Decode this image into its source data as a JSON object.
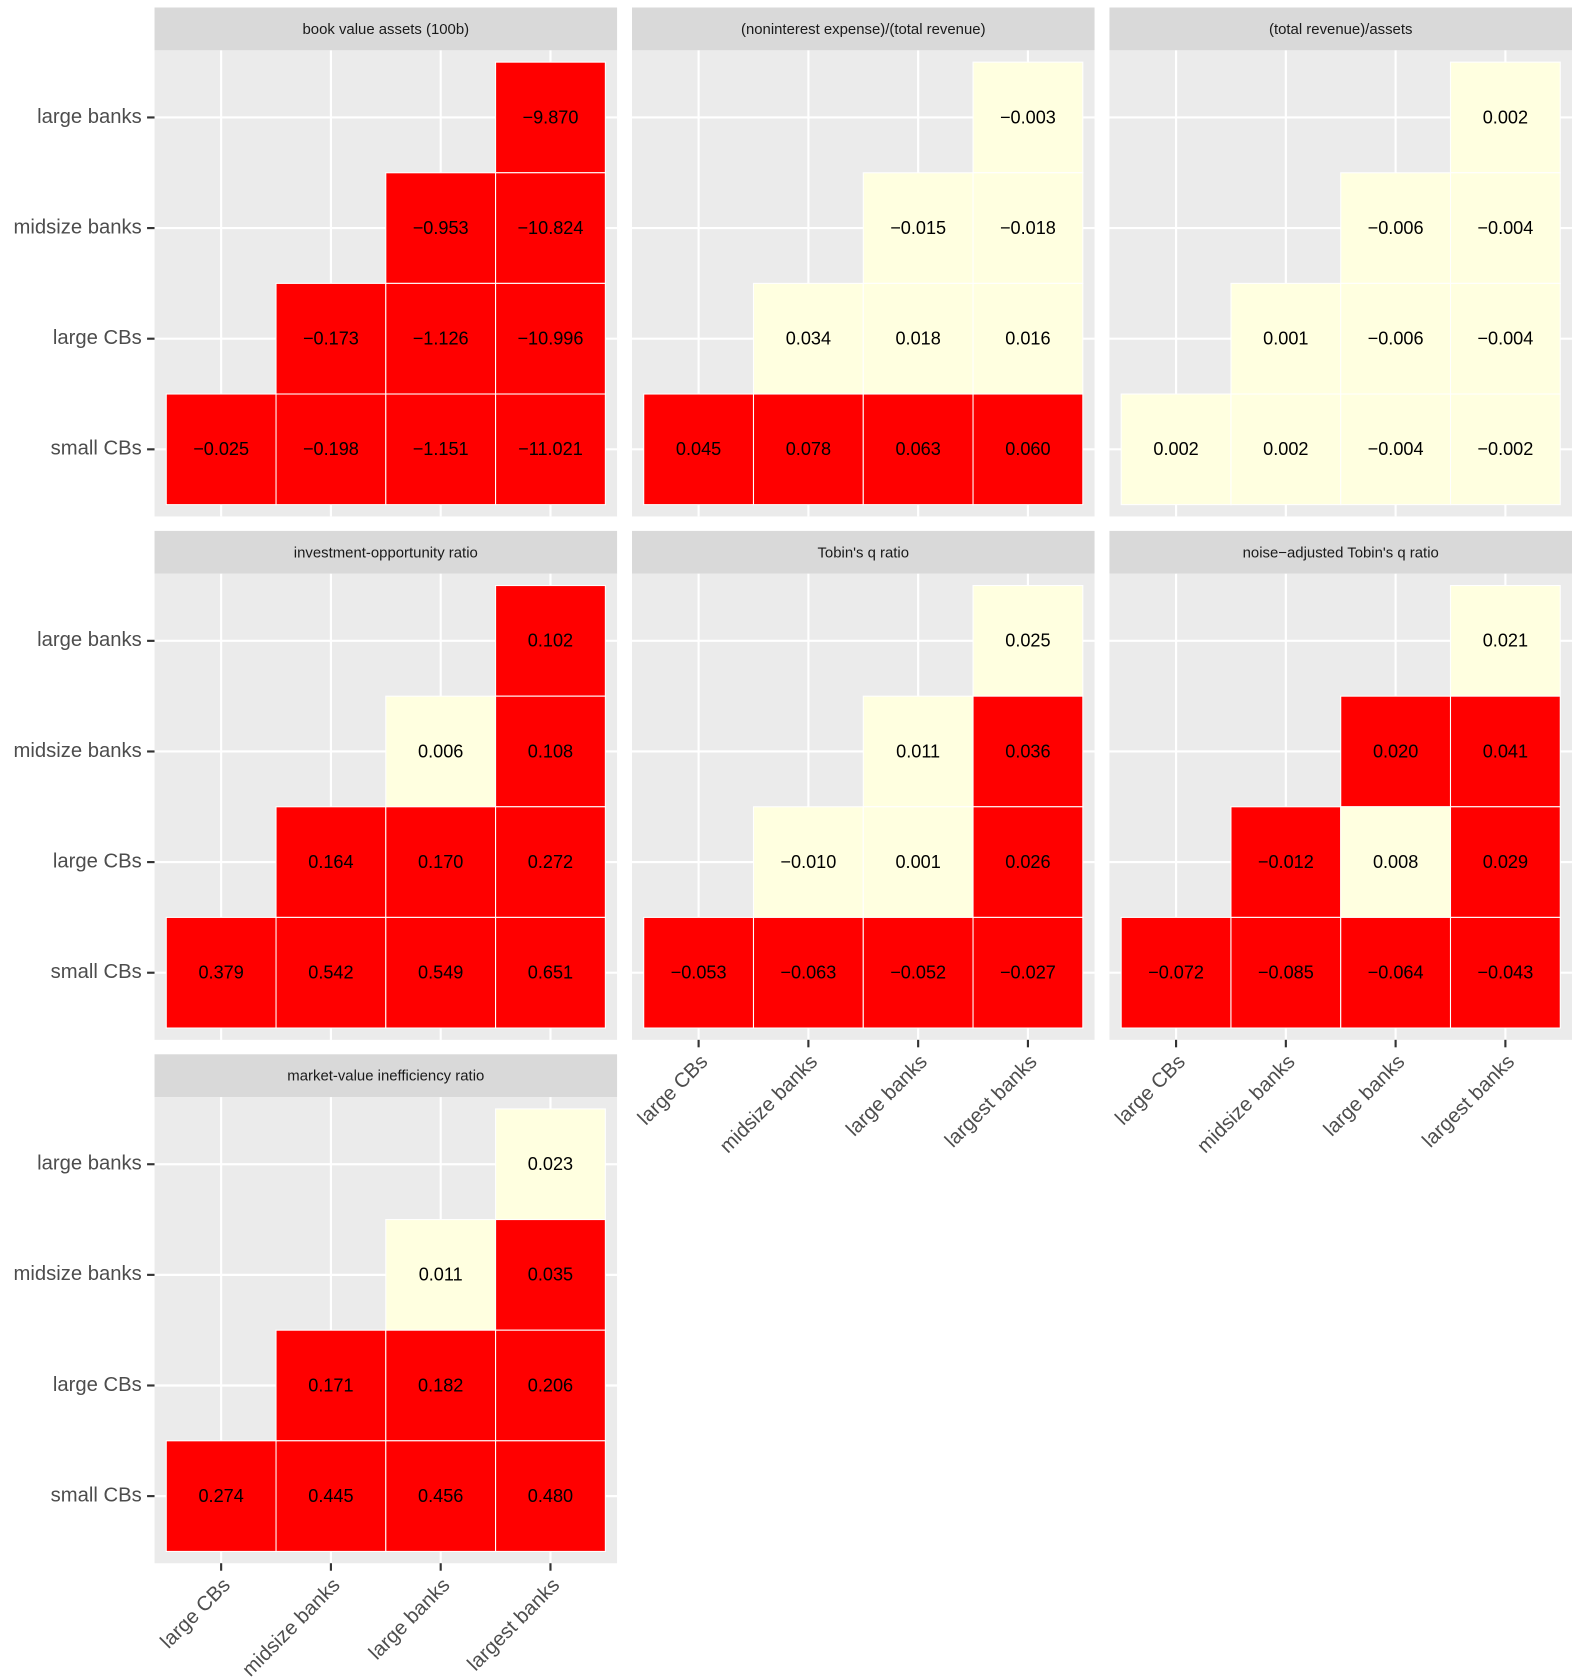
{
  "chart_data": {
    "type": "heatmap",
    "categories": [
      "large CBs",
      "midsize banks",
      "large banks",
      "largest banks"
    ],
    "y_categories": [
      "large banks",
      "midsize banks",
      "large CBs",
      "small CBs"
    ],
    "facets": [
      {
        "title": "book value assets (100b)",
        "values": [
          [
            null,
            null,
            null,
            -9.87
          ],
          [
            null,
            null,
            -0.953,
            -10.824
          ],
          [
            null,
            -0.173,
            -1.126,
            -10.996
          ],
          [
            -0.025,
            -0.198,
            -1.151,
            -11.021
          ]
        ],
        "value_labels": [
          [
            null,
            null,
            null,
            "−9.870"
          ],
          [
            null,
            null,
            "−0.953",
            "−10.824"
          ],
          [
            null,
            "−0.173",
            "−1.126",
            "−10.996"
          ],
          [
            "−0.025",
            "−0.198",
            "−1.151",
            "−11.021"
          ]
        ],
        "colors": [
          [
            null,
            null,
            null,
            "#ff0000"
          ],
          [
            null,
            null,
            "#ff0000",
            "#ff0000"
          ],
          [
            null,
            "#ff0000",
            "#ff0000",
            "#ff0000"
          ],
          [
            "#ff0000",
            "#ff0000",
            "#ff0000",
            "#ff0000"
          ]
        ]
      },
      {
        "title": "(noninterest expense)/(total revenue)",
        "values": [
          [
            null,
            null,
            null,
            -0.003
          ],
          [
            null,
            null,
            -0.015,
            -0.018
          ],
          [
            null,
            0.034,
            0.018,
            0.016
          ],
          [
            0.045,
            0.078,
            0.063,
            0.06
          ]
        ],
        "value_labels": [
          [
            null,
            null,
            null,
            "−0.003"
          ],
          [
            null,
            null,
            "−0.015",
            "−0.018"
          ],
          [
            null,
            "0.034",
            "0.018",
            "0.016"
          ],
          [
            "0.045",
            "0.078",
            "0.063",
            "0.060"
          ]
        ],
        "colors": [
          [
            null,
            null,
            null,
            "#ffffe0"
          ],
          [
            null,
            null,
            "#ffffe0",
            "#ffffe0"
          ],
          [
            null,
            "#ffffe0",
            "#ffffe0",
            "#ffffe0"
          ],
          [
            "#ff0000",
            "#ff0000",
            "#ff0000",
            "#ff0000"
          ]
        ]
      },
      {
        "title": "(total revenue)/assets",
        "values": [
          [
            null,
            null,
            null,
            0.002
          ],
          [
            null,
            null,
            -0.006,
            -0.004
          ],
          [
            null,
            0.001,
            -0.006,
            -0.004
          ],
          [
            0.002,
            0.002,
            -0.004,
            -0.002
          ]
        ],
        "value_labels": [
          [
            null,
            null,
            null,
            "0.002"
          ],
          [
            null,
            null,
            "−0.006",
            "−0.004"
          ],
          [
            null,
            "0.001",
            "−0.006",
            "−0.004"
          ],
          [
            "0.002",
            "0.002",
            "−0.004",
            "−0.002"
          ]
        ],
        "colors": [
          [
            null,
            null,
            null,
            "#ffffe0"
          ],
          [
            null,
            null,
            "#ffffe0",
            "#ffffe0"
          ],
          [
            null,
            "#ffffe0",
            "#ffffe0",
            "#ffffe0"
          ],
          [
            "#ffffe0",
            "#ffffe0",
            "#ffffe0",
            "#ffffe0"
          ]
        ]
      },
      {
        "title": "investment-opportunity ratio",
        "values": [
          [
            null,
            null,
            null,
            0.102
          ],
          [
            null,
            null,
            0.006,
            0.108
          ],
          [
            null,
            0.164,
            0.17,
            0.272
          ],
          [
            0.379,
            0.542,
            0.549,
            0.651
          ]
        ],
        "value_labels": [
          [
            null,
            null,
            null,
            "0.102"
          ],
          [
            null,
            null,
            "0.006",
            "0.108"
          ],
          [
            null,
            "0.164",
            "0.170",
            "0.272"
          ],
          [
            "0.379",
            "0.542",
            "0.549",
            "0.651"
          ]
        ],
        "colors": [
          [
            null,
            null,
            null,
            "#ff0000"
          ],
          [
            null,
            null,
            "#ffffe0",
            "#ff0000"
          ],
          [
            null,
            "#ff0000",
            "#ff0000",
            "#ff0000"
          ],
          [
            "#ff0000",
            "#ff0000",
            "#ff0000",
            "#ff0000"
          ]
        ]
      },
      {
        "title": "Tobin's q ratio",
        "values": [
          [
            null,
            null,
            null,
            0.025
          ],
          [
            null,
            null,
            0.011,
            0.036
          ],
          [
            null,
            -0.01,
            0.001,
            0.026
          ],
          [
            -0.053,
            -0.063,
            -0.052,
            -0.027
          ]
        ],
        "value_labels": [
          [
            null,
            null,
            null,
            "0.025"
          ],
          [
            null,
            null,
            "0.011",
            "0.036"
          ],
          [
            null,
            "−0.010",
            "0.001",
            "0.026"
          ],
          [
            "−0.053",
            "−0.063",
            "−0.052",
            "−0.027"
          ]
        ],
        "colors": [
          [
            null,
            null,
            null,
            "#ffffe0"
          ],
          [
            null,
            null,
            "#ffffe0",
            "#ff0000"
          ],
          [
            null,
            "#ffffe0",
            "#ffffe0",
            "#ff0000"
          ],
          [
            "#ff0000",
            "#ff0000",
            "#ff0000",
            "#ff0000"
          ]
        ]
      },
      {
        "title": "noise−adjusted Tobin's q ratio",
        "values": [
          [
            null,
            null,
            null,
            0.021
          ],
          [
            null,
            null,
            0.02,
            0.041
          ],
          [
            null,
            -0.012,
            0.008,
            0.029
          ],
          [
            -0.072,
            -0.085,
            -0.064,
            -0.043
          ]
        ],
        "value_labels": [
          [
            null,
            null,
            null,
            "0.021"
          ],
          [
            null,
            null,
            "0.020",
            "0.041"
          ],
          [
            null,
            "−0.012",
            "0.008",
            "0.029"
          ],
          [
            "−0.072",
            "−0.085",
            "−0.064",
            "−0.043"
          ]
        ],
        "colors": [
          [
            null,
            null,
            null,
            "#ffffe0"
          ],
          [
            null,
            null,
            "#ff0000",
            "#ff0000"
          ],
          [
            null,
            "#ff0000",
            "#ffffe0",
            "#ff0000"
          ],
          [
            "#ff0000",
            "#ff0000",
            "#ff0000",
            "#ff0000"
          ]
        ]
      },
      {
        "title": "market-value inefficiency ratio",
        "values": [
          [
            null,
            null,
            null,
            0.023
          ],
          [
            null,
            null,
            0.011,
            0.035
          ],
          [
            null,
            0.171,
            0.182,
            0.206
          ],
          [
            0.274,
            0.445,
            0.456,
            0.48
          ]
        ],
        "value_labels": [
          [
            null,
            null,
            null,
            "0.023"
          ],
          [
            null,
            null,
            "0.011",
            "0.035"
          ],
          [
            null,
            "0.171",
            "0.182",
            "0.206"
          ],
          [
            "0.274",
            "0.445",
            "0.456",
            "0.480"
          ]
        ],
        "colors": [
          [
            null,
            null,
            null,
            "#ffffe0"
          ],
          [
            null,
            null,
            "#ffffe0",
            "#ff0000"
          ],
          [
            null,
            "#ff0000",
            "#ff0000",
            "#ff0000"
          ],
          [
            "#ff0000",
            "#ff0000",
            "#ff0000",
            "#ff0000"
          ]
        ]
      }
    ]
  }
}
